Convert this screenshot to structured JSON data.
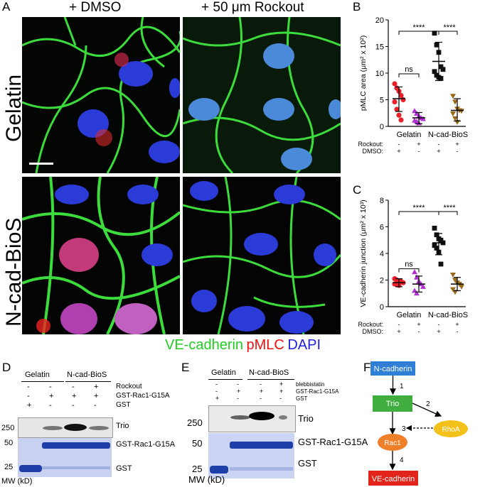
{
  "panel_letters": {
    "a": "A",
    "b": "B",
    "c": "C",
    "d": "D",
    "e": "E",
    "f": "F"
  },
  "panel_a": {
    "col1": "+ DMSO",
    "col2": "+ 50 μm Rockout",
    "row1": "Gelatin",
    "row2": "N-cad-BioS",
    "legend": {
      "green": "VE-cadherin",
      "red": "pMLC",
      "blue": "DAPI",
      "green_color": "#22cc22",
      "red_color": "#ee1111",
      "blue_color": "#2222dd"
    }
  },
  "chart_data": [
    {
      "type": "scatter",
      "panel": "B",
      "ylabel": "pMLC area (μm² x 10²)",
      "ylim": [
        0,
        20
      ],
      "yticks": [
        "0",
        "5",
        "10",
        "15",
        "20"
      ],
      "groups": [
        "Gelatin",
        "N-cad-BioS"
      ],
      "row_labels": [
        "Rockout:",
        "DMSO:"
      ],
      "rockout": [
        "-",
        "+",
        "-",
        "+"
      ],
      "dmso": [
        "+",
        "-",
        "+",
        "-"
      ],
      "sig": [
        "****",
        "ns",
        "****"
      ],
      "series": [
        {
          "color": "#e8202a",
          "marker": "circle",
          "mean": 5.2,
          "sd_low": 2.8,
          "sd_high": 7.4,
          "values": [
            8.0,
            7.2,
            6.6,
            5.8,
            5.0,
            4.6,
            3.2,
            2.1,
            1.2
          ]
        },
        {
          "color": "#b030d0",
          "marker": "triangle-up",
          "mean": 1.6,
          "sd_low": 0.5,
          "sd_high": 2.6,
          "values": [
            2.9,
            2.4,
            1.9,
            1.6,
            1.4,
            1.1,
            0.9,
            0.6
          ]
        },
        {
          "color": "#111111",
          "marker": "square",
          "mean": 12.2,
          "sd_low": 8.6,
          "sd_high": 15.8,
          "values": [
            17.5,
            15.3,
            13.9,
            11.2,
            10.7,
            10.3,
            9.6,
            9.2,
            9.0
          ]
        },
        {
          "color": "#9a6a1c",
          "marker": "triangle-down",
          "mean": 3.0,
          "sd_low": 1.0,
          "sd_high": 5.2,
          "values": [
            5.7,
            4.6,
            3.3,
            3.0,
            2.9,
            2.4,
            1.5,
            0.8
          ]
        }
      ]
    },
    {
      "type": "scatter",
      "panel": "C",
      "ylabel": "VE-cadherin junction (μm² x 10³)",
      "ylim": [
        0,
        8
      ],
      "yticks": [
        "0",
        "2",
        "4",
        "6",
        "8"
      ],
      "groups": [
        "Gelatin",
        "N-cad-BioS"
      ],
      "row_labels": [
        "Rockout:",
        "DMSO:"
      ],
      "rockout": [
        "-",
        "+",
        "-",
        "+"
      ],
      "dmso": [
        "+",
        "-",
        "+",
        "-"
      ],
      "sig": [
        "****",
        "ns",
        "****"
      ],
      "series": [
        {
          "color": "#e8202a",
          "marker": "circle",
          "mean": 1.8,
          "sd_low": 1.5,
          "sd_high": 2.1,
          "values": [
            2.1,
            2.0,
            1.9,
            1.9,
            1.8,
            1.7,
            1.7,
            1.6
          ]
        },
        {
          "color": "#b030d0",
          "marker": "triangle-up",
          "mean": 1.7,
          "sd_low": 1.1,
          "sd_high": 2.3,
          "values": [
            2.6,
            2.2,
            1.9,
            1.7,
            1.5,
            1.2,
            1.0
          ]
        },
        {
          "color": "#111111",
          "marker": "square",
          "mean": 4.8,
          "sd_low": 3.9,
          "sd_high": 5.5,
          "values": [
            5.9,
            5.4,
            5.1,
            5.0,
            4.8,
            4.6,
            4.4,
            4.1,
            3.2
          ]
        },
        {
          "color": "#9a6a1c",
          "marker": "triangle-down",
          "mean": 1.7,
          "sd_low": 1.2,
          "sd_high": 2.2,
          "values": [
            2.4,
            2.0,
            1.8,
            1.7,
            1.5,
            1.3,
            1.1
          ]
        }
      ]
    }
  ],
  "panel_d": {
    "header_gelatin": "Gelatin",
    "header_ncad": "N-cad-BioS",
    "row_labels": [
      "Rockout",
      "GST-Rac1-G15A",
      "GST"
    ],
    "row_rockout": [
      "-",
      "-",
      "-",
      "+"
    ],
    "row_gst_rac": [
      "-",
      "+",
      "+",
      "+"
    ],
    "row_gst": [
      "+",
      "-",
      "-",
      "-"
    ],
    "mw_250": "250",
    "mw_50": "50",
    "mw_25": "25",
    "band_trio": "Trio",
    "band_gst_rac": "GST-Rac1-G15A",
    "band_gst": "GST",
    "mw_label": "MW (kD)"
  },
  "panel_e": {
    "header_gelatin": "Gelatin",
    "header_ncad": "N-cad-BioS",
    "row_labels": [
      "blebbistatin",
      "GST-Rac1-G15A",
      "GST"
    ],
    "row_bleb": [
      "-",
      "-",
      "-",
      "+"
    ],
    "row_gst_rac": [
      "-",
      "+",
      "+",
      "+"
    ],
    "row_gst": [
      "+",
      "-",
      "-",
      "-"
    ],
    "mw_250": "250",
    "mw_50": "50",
    "mw_25": "25",
    "band_trio": "Trio",
    "band_gst_rac": "GST-Rac1-G15A",
    "band_gst": "GST",
    "mw_label": "MW (kD)"
  },
  "panel_f": {
    "ncad": "N-cadherin",
    "trio": "Trio",
    "rhoa": "RhoA",
    "rac1": "Rac1",
    "vecad": "VE-cadherin",
    "step1": "1",
    "step2": "2",
    "step3": "3",
    "step4": "4"
  }
}
